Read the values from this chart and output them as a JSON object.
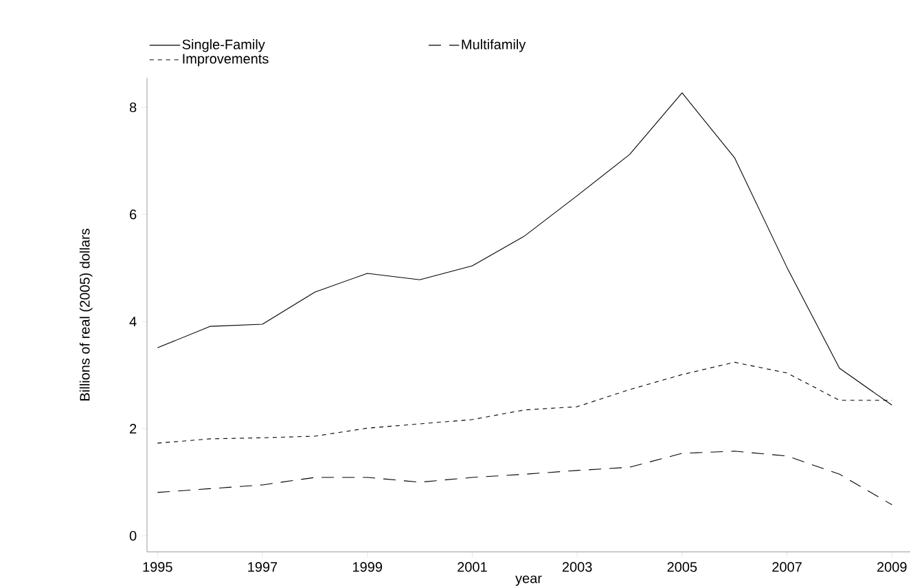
{
  "chart_data": {
    "type": "line",
    "xlabel": "year",
    "ylabel": "Billions of real (2005) dollars",
    "x": [
      1995,
      1996,
      1997,
      1998,
      1999,
      2000,
      2001,
      2002,
      2003,
      2004,
      2005,
      2006,
      2007,
      2008,
      2009
    ],
    "series": [
      {
        "name": "Single-Family",
        "color": "#000000",
        "line_style": "solid",
        "values": [
          3.51,
          3.91,
          3.95,
          4.55,
          4.9,
          4.78,
          5.04,
          5.6,
          6.35,
          7.12,
          8.27,
          7.06,
          5.01,
          3.13,
          2.44
        ]
      },
      {
        "name": "Multifamily",
        "color": "#000000",
        "line_style": "dashed",
        "values": [
          0.81,
          0.88,
          0.95,
          1.09,
          1.09,
          1.0,
          1.09,
          1.15,
          1.22,
          1.28,
          1.54,
          1.58,
          1.49,
          1.15,
          0.58
        ]
      },
      {
        "name": "Improvements",
        "color": "#000000",
        "line_style": "dashed",
        "values": [
          1.73,
          1.81,
          1.83,
          1.86,
          2.01,
          2.09,
          2.17,
          2.35,
          2.41,
          2.73,
          3.01,
          3.24,
          3.04,
          2.53,
          2.53
        ]
      }
    ],
    "xlim": [
      1994.8,
      2009.35
    ],
    "ylim": [
      -0.3,
      8.55
    ],
    "xticks": [
      1995,
      1997,
      1999,
      2001,
      2003,
      2005,
      2007,
      2009
    ],
    "yticks": [
      0,
      2,
      4,
      6,
      8
    ],
    "grid": false,
    "legend": "top left",
    "marker": "none"
  }
}
